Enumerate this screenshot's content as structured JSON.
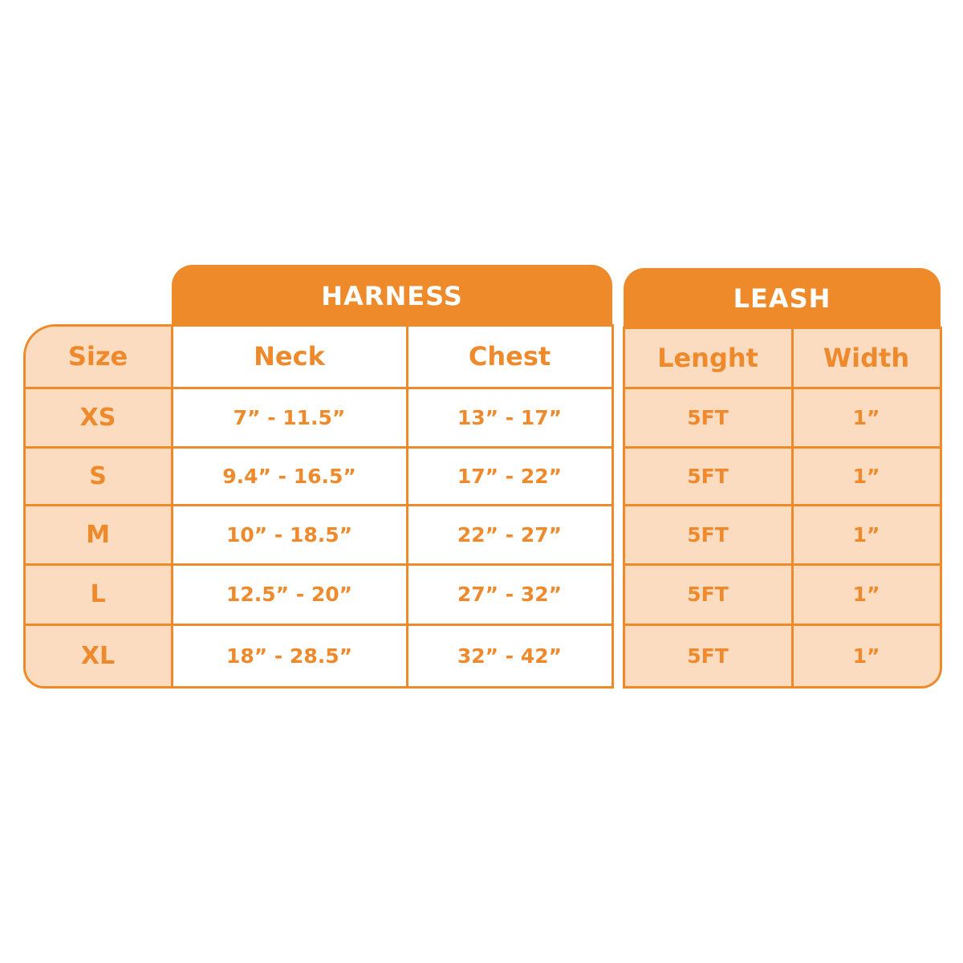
{
  "colors": {
    "accent": "#ef8a2a",
    "peach": "#fcdcc1"
  },
  "harness": {
    "title": "HARNESS",
    "neck_label": "Neck",
    "chest_label": "Chest"
  },
  "leash": {
    "title": "LEASH",
    "length_label": "Lenght",
    "width_label": "Width"
  },
  "size_label": "Size",
  "rows": [
    {
      "size": "XS",
      "neck": "7” - 11.5”",
      "chest": "13” - 17”",
      "length": "5FT",
      "width": "1”"
    },
    {
      "size": "S",
      "neck": "9.4” - 16.5”",
      "chest": "17” - 22”",
      "length": "5FT",
      "width": "1”"
    },
    {
      "size": "M",
      "neck": "10” - 18.5”",
      "chest": "22” - 27”",
      "length": "5FT",
      "width": "1”"
    },
    {
      "size": "L",
      "neck": "12.5” - 20”",
      "chest": "27” - 32”",
      "length": "5FT",
      "width": "1”"
    },
    {
      "size": "XL",
      "neck": "18” - 28.5”",
      "chest": "32” - 42”",
      "length": "5FT",
      "width": "1”"
    }
  ]
}
